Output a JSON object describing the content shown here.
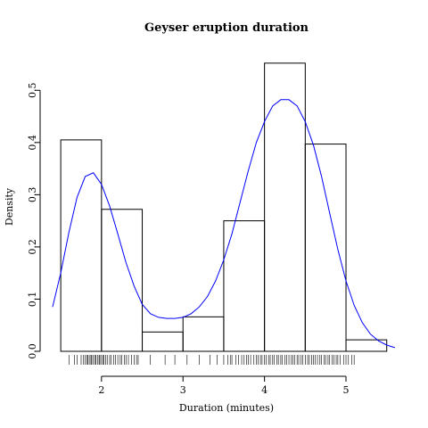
{
  "chart_data": {
    "type": "bar",
    "title": "Geyser eruption duration",
    "xlabel": "Duration (minutes)",
    "ylabel": "Density",
    "xlim": [
      1.4,
      5.7
    ],
    "ylim": [
      0,
      0.55
    ],
    "x_ticks": [
      2,
      3,
      4,
      5
    ],
    "y_ticks": [
      0.0,
      0.1,
      0.2,
      0.3,
      0.4,
      0.5
    ],
    "y_tick_labels": [
      "0.0",
      "0.1",
      "0.2",
      "0.3",
      "0.4",
      "0.5"
    ],
    "bins": [
      {
        "start": 1.5,
        "end": 2.0,
        "density": 0.405
      },
      {
        "start": 2.0,
        "end": 2.5,
        "density": 0.272
      },
      {
        "start": 2.5,
        "end": 3.0,
        "density": 0.037
      },
      {
        "start": 3.0,
        "end": 3.5,
        "density": 0.066
      },
      {
        "start": 3.5,
        "end": 4.0,
        "density": 0.25
      },
      {
        "start": 4.0,
        "end": 4.5,
        "density": 0.552
      },
      {
        "start": 4.5,
        "end": 5.0,
        "density": 0.397
      },
      {
        "start": 5.0,
        "end": 5.5,
        "density": 0.022
      }
    ],
    "density_curve": {
      "color": "#0000ff",
      "x": [
        1.4,
        1.5,
        1.6,
        1.7,
        1.8,
        1.9,
        2.0,
        2.1,
        2.2,
        2.3,
        2.4,
        2.5,
        2.6,
        2.7,
        2.8,
        2.9,
        3.0,
        3.1,
        3.2,
        3.3,
        3.4,
        3.5,
        3.6,
        3.7,
        3.8,
        3.9,
        4.0,
        4.1,
        4.2,
        4.3,
        4.4,
        4.5,
        4.6,
        4.7,
        4.8,
        4.9,
        5.0,
        5.1,
        5.2,
        5.3,
        5.4,
        5.5,
        5.6
      ],
      "y": [
        0.085,
        0.15,
        0.228,
        0.295,
        0.335,
        0.342,
        0.32,
        0.278,
        0.225,
        0.17,
        0.125,
        0.09,
        0.072,
        0.065,
        0.063,
        0.063,
        0.065,
        0.072,
        0.085,
        0.105,
        0.135,
        0.175,
        0.225,
        0.285,
        0.345,
        0.4,
        0.44,
        0.47,
        0.482,
        0.482,
        0.47,
        0.44,
        0.395,
        0.335,
        0.265,
        0.195,
        0.135,
        0.088,
        0.055,
        0.033,
        0.02,
        0.012,
        0.007
      ]
    },
    "rug": [
      1.6,
      1.67,
      1.7,
      1.75,
      1.78,
      1.8,
      1.82,
      1.83,
      1.85,
      1.87,
      1.88,
      1.9,
      1.92,
      1.93,
      1.95,
      1.97,
      1.98,
      2.0,
      2.02,
      2.03,
      2.05,
      2.07,
      2.1,
      2.12,
      2.15,
      2.17,
      2.2,
      2.23,
      2.25,
      2.28,
      2.3,
      2.33,
      2.37,
      2.4,
      2.43,
      2.45,
      2.6,
      2.78,
      2.9,
      3.05,
      3.2,
      3.33,
      3.42,
      3.5,
      3.55,
      3.58,
      3.6,
      3.65,
      3.68,
      3.72,
      3.75,
      3.78,
      3.8,
      3.83,
      3.87,
      3.9,
      3.92,
      3.95,
      3.97,
      4.0,
      4.02,
      4.05,
      4.07,
      4.1,
      4.12,
      4.15,
      4.17,
      4.2,
      4.22,
      4.25,
      4.27,
      4.3,
      4.33,
      4.35,
      4.37,
      4.4,
      4.42,
      4.45,
      4.47,
      4.5,
      4.53,
      4.55,
      4.58,
      4.6,
      4.62,
      4.65,
      4.68,
      4.7,
      4.73,
      4.75,
      4.78,
      4.8,
      4.83,
      4.85,
      4.88,
      4.9,
      4.93,
      4.97,
      5.0,
      5.03,
      5.07,
      5.1
    ]
  }
}
